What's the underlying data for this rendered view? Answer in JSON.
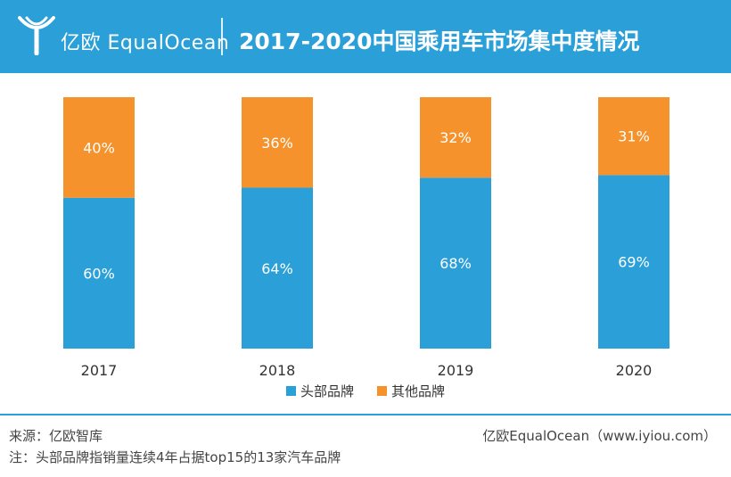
{
  "header": {
    "logo_text": "亿欧 EqualOcean",
    "brand_color": "#2a9fd8"
  },
  "chart_data": {
    "type": "bar",
    "stacked": true,
    "title": "2017-2020中国乘用车市场集中度情况",
    "categories": [
      "2017",
      "2018",
      "2019",
      "2020"
    ],
    "series": [
      {
        "name": "头部品牌",
        "color": "#2a9fd8",
        "values": [
          60,
          64,
          68,
          69
        ],
        "labels": [
          "60%",
          "64%",
          "68%",
          "69%"
        ]
      },
      {
        "name": "其他品牌",
        "color": "#f5922b",
        "values": [
          40,
          36,
          32,
          31
        ],
        "labels": [
          "40%",
          "36%",
          "32%",
          "31%"
        ]
      }
    ],
    "ylim": [
      0,
      100
    ],
    "grid": false,
    "legend_position": "bottom"
  },
  "footer": {
    "source": "来源：亿欧智库",
    "note": "注：头部品牌指销量连续4年占据top15的13家汽车品牌",
    "credit": "亿欧EqualOcean（www.iyiou.com）"
  }
}
